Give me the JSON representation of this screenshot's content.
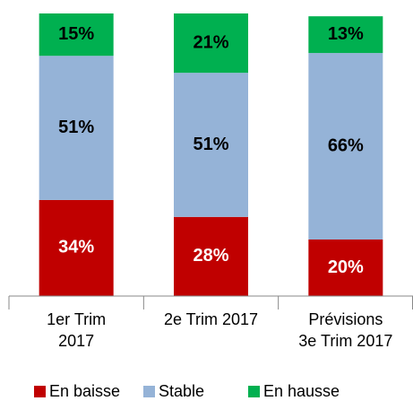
{
  "chart_data": {
    "type": "stacked_bar",
    "categories": [
      [
        "1er Trim",
        "2017"
      ],
      [
        "2e Trim  2017"
      ],
      [
        "Prévisions",
        "3e Trim  2017"
      ]
    ],
    "ylim": [
      0,
      100
    ],
    "legend": "bottom",
    "series": [
      {
        "name": "En baisse",
        "color": "#c00000",
        "label_color": "#ffffff",
        "values": [
          34,
          28,
          20
        ],
        "value_labels": [
          "34%",
          "28%",
          "20%"
        ]
      },
      {
        "name": "Stable",
        "color": "#95b3d7",
        "label_color": "#000000",
        "values": [
          51,
          51,
          66
        ],
        "value_labels": [
          "51%",
          "51%",
          "66%"
        ]
      },
      {
        "name": "En hausse",
        "color": "#00b050",
        "label_color": "#000000",
        "values": [
          15,
          21,
          13
        ],
        "value_labels": [
          "15%",
          "21%",
          "13%"
        ]
      }
    ]
  }
}
